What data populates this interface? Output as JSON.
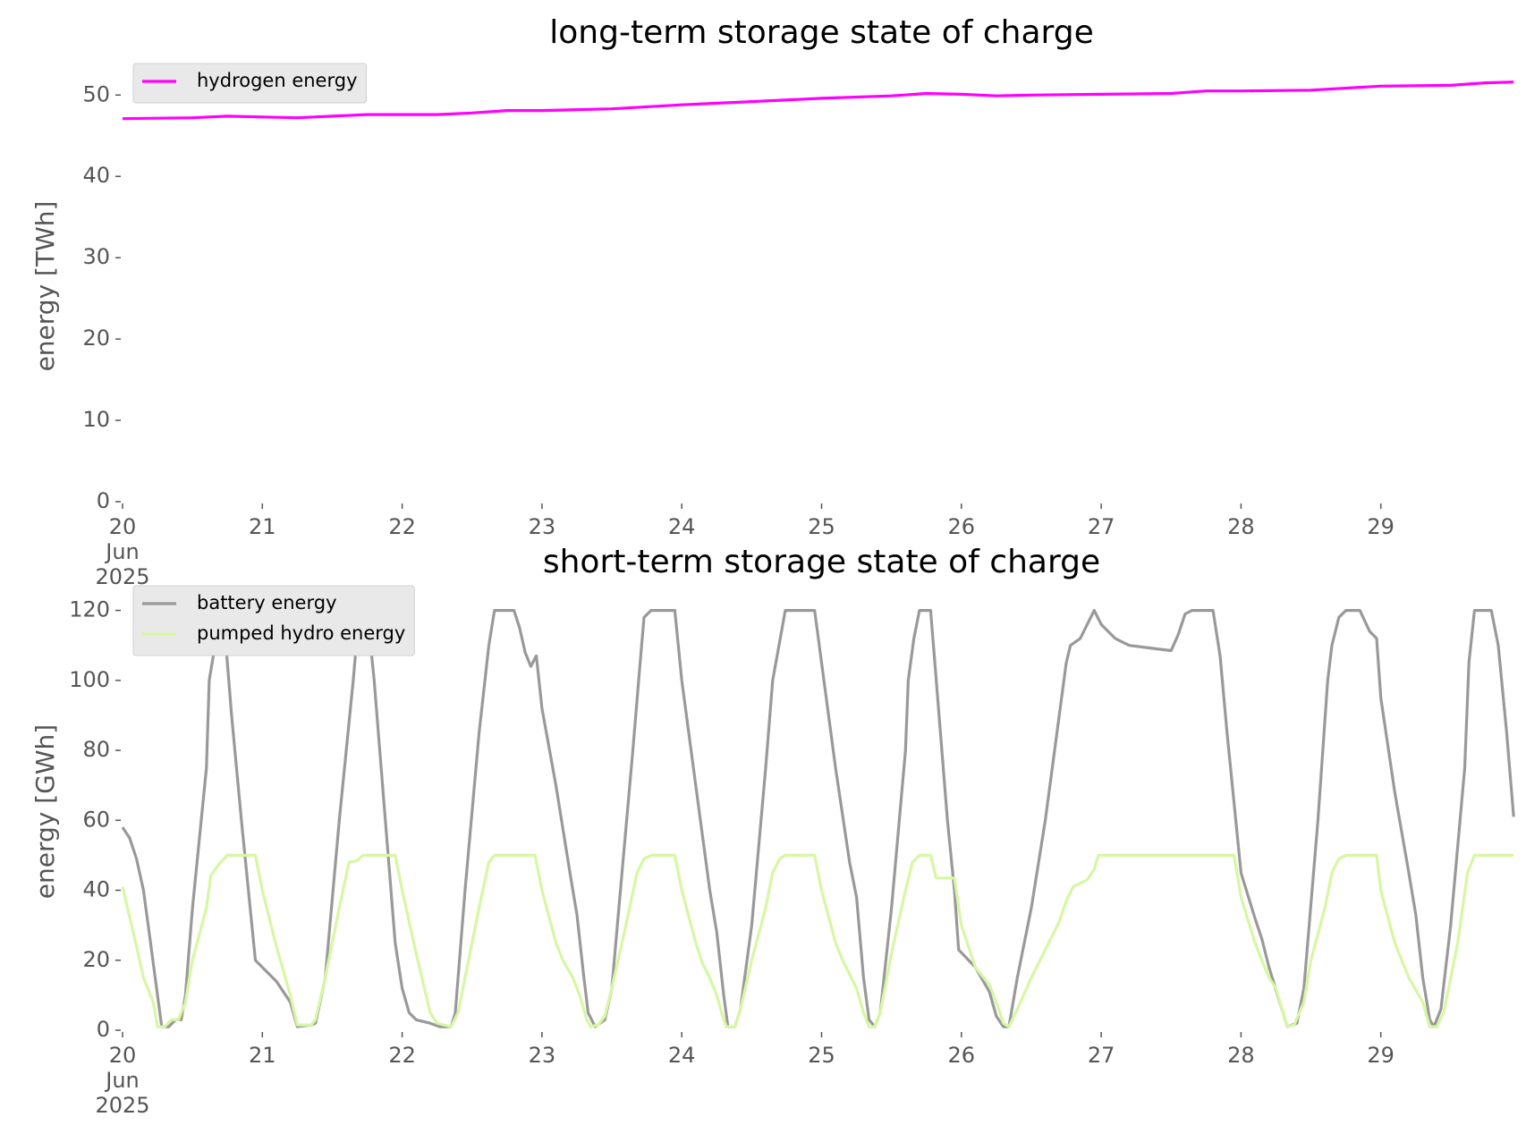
{
  "chart_data": [
    {
      "type": "line",
      "title": "long-term storage state of charge",
      "ylabel": "energy [TWh]",
      "xlim": [
        20,
        30
      ],
      "xticks": [
        {
          "value": 20,
          "label": "20\nJun\n2025"
        },
        21,
        22,
        23,
        24,
        25,
        26,
        27,
        28,
        29
      ],
      "ylim": [
        0,
        53
      ],
      "yticks": [
        0,
        10,
        20,
        30,
        40,
        50
      ],
      "legend": "upper left",
      "series": [
        {
          "name": "hydrogen energy",
          "color": "#ff00ff",
          "x": [
            20,
            20.5,
            20.75,
            21,
            21.25,
            21.5,
            21.75,
            22,
            22.25,
            22.5,
            22.75,
            23,
            23.5,
            24,
            24.5,
            25,
            25.5,
            25.75,
            26,
            26.25,
            26.5,
            27,
            27.5,
            27.75,
            28,
            28.5,
            29,
            29.5,
            29.75,
            29.95
          ],
          "values": [
            47.1,
            47.2,
            47.4,
            47.3,
            47.2,
            47.4,
            47.6,
            47.6,
            47.6,
            47.8,
            48.1,
            48.1,
            48.3,
            48.8,
            49.2,
            49.6,
            49.9,
            50.2,
            50.1,
            49.9,
            50.0,
            50.1,
            50.2,
            50.5,
            50.5,
            50.6,
            51.1,
            51.2,
            51.5,
            51.6
          ]
        }
      ]
    },
    {
      "type": "line",
      "title": "short-term storage state of charge",
      "ylabel": "energy [GWh]",
      "xlim": [
        20,
        30
      ],
      "xticks": [
        {
          "value": 20,
          "label": "20\nJun\n2025"
        },
        21,
        22,
        23,
        24,
        25,
        26,
        27,
        28,
        29
      ],
      "ylim": [
        0,
        125
      ],
      "yticks": [
        0,
        20,
        40,
        60,
        80,
        100,
        120
      ],
      "legend": "upper left",
      "series": [
        {
          "name": "battery energy",
          "color": "#999999",
          "x": [
            20,
            20.05,
            20.1,
            20.15,
            20.2,
            20.25,
            20.28,
            20.33,
            20.38,
            20.42,
            20.45,
            20.5,
            20.6,
            20.62,
            20.67,
            20.72,
            20.78,
            20.85,
            20.9,
            20.95,
            21.0,
            21.1,
            21.2,
            21.25,
            21.35,
            21.38,
            21.45,
            21.55,
            21.65,
            21.68,
            21.72,
            21.75,
            21.8,
            21.88,
            21.95,
            22.0,
            22.05,
            22.1,
            22.2,
            22.27,
            22.35,
            22.38,
            22.45,
            22.55,
            22.62,
            22.66,
            22.8,
            22.84,
            22.88,
            22.92,
            22.96,
            23.0,
            23.1,
            23.2,
            23.25,
            23.3,
            23.33,
            23.38,
            23.45,
            23.5,
            23.55,
            23.65,
            23.7,
            23.73,
            23.78,
            23.95,
            24.0,
            24.1,
            24.2,
            24.25,
            24.3,
            24.33,
            24.38,
            24.42,
            24.5,
            24.6,
            24.65,
            24.7,
            24.74,
            24.95,
            25.0,
            25.1,
            25.2,
            25.25,
            25.3,
            25.34,
            25.38,
            25.42,
            25.5,
            25.6,
            25.62,
            25.66,
            25.7,
            25.78,
            25.82,
            25.9,
            25.95,
            25.98,
            26.1,
            26.2,
            26.25,
            26.3,
            26.34,
            26.4,
            26.5,
            26.6,
            26.7,
            26.75,
            26.78,
            26.85,
            26.9,
            26.95,
            27.0,
            27.1,
            27.2,
            27.4,
            27.5,
            27.55,
            27.6,
            27.65,
            27.8,
            27.85,
            27.9,
            27.95,
            28.0,
            28.1,
            28.15,
            28.2,
            28.3,
            28.33,
            28.4,
            28.45,
            28.55,
            28.62,
            28.65,
            28.7,
            28.75,
            28.85,
            28.92,
            28.97,
            29.0,
            29.1,
            29.2,
            29.25,
            29.3,
            29.35,
            29.38,
            29.43,
            29.5,
            29.6,
            29.63,
            29.67,
            29.79,
            29.84,
            29.9,
            29.95
          ],
          "values": [
            58,
            55,
            49,
            40,
            25,
            10,
            1,
            1,
            3,
            3,
            10,
            35,
            75,
            100,
            112,
            120,
            90,
            60,
            40,
            20,
            18,
            14,
            8,
            1,
            1.5,
            2,
            15,
            60,
            100,
            114,
            116,
            120,
            100,
            60,
            25,
            12,
            5,
            3,
            2,
            1,
            1,
            5,
            40,
            85,
            110,
            120,
            120,
            115,
            108,
            104,
            107,
            92,
            70,
            45,
            33,
            15,
            5,
            1,
            3,
            12,
            35,
            80,
            104,
            118,
            120,
            120,
            100,
            70,
            40,
            28,
            10,
            1,
            1,
            6,
            30,
            75,
            100,
            111,
            120,
            120,
            105,
            75,
            48,
            38,
            15,
            3,
            1,
            5,
            35,
            80,
            100,
            112,
            120,
            120,
            100,
            60,
            40,
            23,
            18,
            11,
            4,
            1,
            1,
            15,
            35,
            60,
            90,
            105,
            110,
            112,
            116,
            120,
            116,
            112,
            110,
            109,
            108.5,
            113,
            119,
            120,
            120,
            107,
            85,
            65,
            45,
            32,
            26,
            18,
            5,
            1,
            2,
            12,
            60,
            100,
            110,
            118,
            120,
            120,
            114,
            112,
            95,
            68,
            45,
            33,
            15,
            3,
            1,
            6,
            30,
            75,
            105,
            120,
            120,
            110,
            85,
            61
          ]
        },
        {
          "name": "pumped hydro energy",
          "color": "#d6f7a3",
          "x": [
            20,
            20.1,
            20.15,
            20.22,
            20.25,
            20.3,
            20.35,
            20.4,
            20.45,
            20.5,
            20.6,
            20.63,
            20.68,
            20.75,
            20.95,
            21.0,
            21.1,
            21.2,
            21.25,
            21.35,
            21.38,
            21.45,
            21.55,
            21.62,
            21.68,
            21.72,
            21.95,
            22.0,
            22.1,
            22.2,
            22.25,
            22.35,
            22.4,
            22.45,
            22.55,
            22.62,
            22.66,
            22.95,
            23.0,
            23.1,
            23.15,
            23.22,
            23.27,
            23.32,
            23.35,
            23.4,
            23.45,
            23.5,
            23.6,
            23.68,
            23.73,
            23.78,
            23.95,
            24.0,
            24.1,
            24.15,
            24.2,
            24.25,
            24.3,
            24.32,
            24.38,
            24.42,
            24.5,
            24.6,
            24.65,
            24.7,
            24.74,
            24.95,
            25.0,
            25.1,
            25.15,
            25.2,
            25.25,
            25.3,
            25.34,
            25.38,
            25.42,
            25.5,
            25.6,
            25.65,
            25.7,
            25.78,
            25.82,
            25.95,
            26.0,
            26.1,
            26.2,
            26.25,
            26.3,
            26.34,
            26.4,
            26.5,
            26.6,
            26.7,
            26.75,
            26.8,
            26.85,
            26.9,
            26.95,
            26.98,
            27.95,
            28.0,
            28.1,
            28.15,
            28.2,
            28.25,
            28.3,
            28.33,
            28.38,
            28.45,
            28.5,
            28.6,
            28.65,
            28.7,
            28.75,
            28.97,
            29.0,
            29.1,
            29.15,
            29.2,
            29.3,
            29.35,
            29.4,
            29.45,
            29.55,
            29.62,
            29.67,
            29.95
          ],
          "values": [
            41,
            24,
            15,
            8,
            1,
            1,
            3,
            3,
            8,
            20,
            35,
            44,
            47,
            50,
            50,
            40,
            24,
            10,
            1.5,
            1.5,
            3,
            15,
            35,
            48,
            48.5,
            50,
            50,
            40,
            22,
            5,
            2,
            1,
            5,
            15,
            35,
            48,
            50,
            50,
            40,
            25,
            20,
            15,
            10,
            3,
            1,
            1.5,
            4,
            12,
            30,
            45,
            49,
            50,
            50,
            40,
            25,
            19,
            15,
            10,
            3,
            1,
            1,
            6,
            20,
            35,
            45,
            49,
            50,
            50,
            40,
            25,
            20,
            16,
            12,
            5,
            1,
            1,
            5,
            22,
            40,
            48,
            50,
            50,
            43.5,
            43.5,
            30,
            18,
            13,
            8,
            2,
            1,
            6,
            15,
            23,
            31,
            37,
            41,
            42,
            43,
            46,
            50,
            50,
            38,
            25,
            20,
            15,
            12,
            5,
            1,
            1.5,
            8,
            20,
            35,
            45,
            49,
            50,
            50,
            40,
            25,
            20,
            15,
            8,
            1,
            1,
            5,
            25,
            45,
            50,
            50
          ]
        }
      ]
    }
  ]
}
